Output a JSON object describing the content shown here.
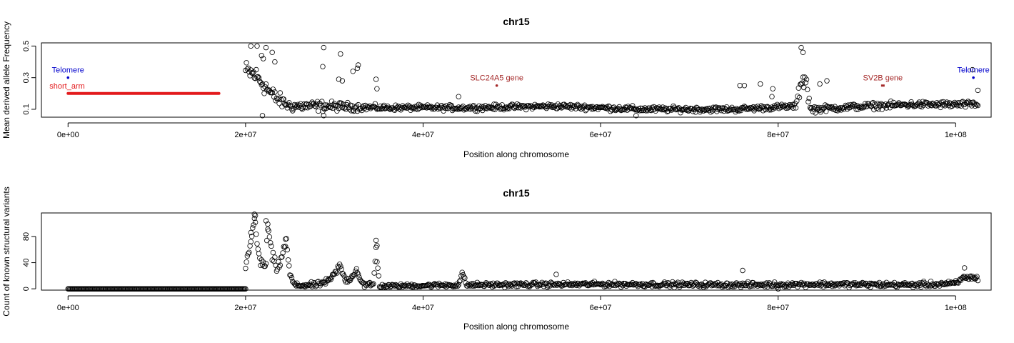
{
  "chart_data": [
    {
      "type": "scatter",
      "title": "chr15",
      "xlabel": "Position along chromosome",
      "ylabel": "Mean derived allele Frequency",
      "xlim": [
        -3000000,
        104000000
      ],
      "ylim": [
        0.05,
        0.52
      ],
      "x_ticks": [
        0,
        20000000,
        40000000,
        60000000,
        80000000,
        100000000
      ],
      "x_tick_labels": [
        "0e+00",
        "2e+07",
        "4e+07",
        "6e+07",
        "8e+07",
        "1e+08"
      ],
      "y_ticks": [
        0.1,
        0.3,
        0.5
      ],
      "y_tick_labels": [
        "0.1",
        "0.3",
        "0.5"
      ],
      "grid": false,
      "colors": {
        "points": "#000000",
        "telomere": "#0000cc",
        "annotation": "#a52a2a",
        "short_arm": "#e31a1c"
      },
      "annotations": [
        {
          "label": "Telomere",
          "x": 0,
          "y": 0.3,
          "color": "#0000cc",
          "marker": "dot"
        },
        {
          "label": "Telomere",
          "x": 102000000,
          "y": 0.3,
          "color": "#0000cc",
          "marker": "dot"
        },
        {
          "label": "SLC24A5 gene",
          "x": 48300000,
          "y": 0.25,
          "color": "#a52a2a",
          "marker": "dot"
        },
        {
          "label": "SV2B gene",
          "x": 91600000,
          "y": 0.25,
          "color": "#a52a2a",
          "marker": "segment",
          "x_end": 92000000
        }
      ],
      "short_arm": {
        "label": "short_arm",
        "x_start": 0,
        "x_end": 17000000,
        "y": 0.2,
        "color": "#e31a1c"
      },
      "series": [
        {
          "x_start": 20000000,
          "x_end": 102500000,
          "step": 100000,
          "baseline": [
            [
              20000000,
              0.34
            ],
            [
              21000000,
              0.32
            ],
            [
              22000000,
              0.26
            ],
            [
              23000000,
              0.19
            ],
            [
              24000000,
              0.15
            ],
            [
              25000000,
              0.12
            ],
            [
              27000000,
              0.12
            ],
            [
              29000000,
              0.12
            ],
            [
              35000000,
              0.11
            ],
            [
              45000000,
              0.11
            ],
            [
              55000000,
              0.12
            ],
            [
              65000000,
              0.1
            ],
            [
              75000000,
              0.1
            ],
            [
              82000000,
              0.12
            ],
            [
              82700000,
              0.3
            ],
            [
              83200000,
              0.28
            ],
            [
              83600000,
              0.1
            ],
            [
              90000000,
              0.12
            ],
            [
              95000000,
              0.13
            ],
            [
              102500000,
              0.13
            ]
          ],
          "spread": [
            [
              20000000,
              0.1
            ],
            [
              23000000,
              0.08
            ],
            [
              25000000,
              0.05
            ],
            [
              28000000,
              0.05
            ],
            [
              35000000,
              0.025
            ],
            [
              82000000,
              0.025
            ],
            [
              82700000,
              0.12
            ],
            [
              84000000,
              0.03
            ],
            [
              102500000,
              0.03
            ]
          ]
        }
      ],
      "outliers": [
        [
          20600000,
          0.5
        ],
        [
          21300000,
          0.5
        ],
        [
          22300000,
          0.49
        ],
        [
          23000000,
          0.46
        ],
        [
          21800000,
          0.44
        ],
        [
          22000000,
          0.42
        ],
        [
          23300000,
          0.4
        ],
        [
          28800000,
          0.49
        ],
        [
          28700000,
          0.37
        ],
        [
          30700000,
          0.45
        ],
        [
          30500000,
          0.29
        ],
        [
          30900000,
          0.28
        ],
        [
          32700000,
          0.38
        ],
        [
          32600000,
          0.36
        ],
        [
          32100000,
          0.34
        ],
        [
          34700000,
          0.29
        ],
        [
          34800000,
          0.23
        ],
        [
          44000000,
          0.18
        ],
        [
          75700000,
          0.25
        ],
        [
          76200000,
          0.25
        ],
        [
          78000000,
          0.26
        ],
        [
          79400000,
          0.23
        ],
        [
          79300000,
          0.18
        ],
        [
          82600000,
          0.49
        ],
        [
          82800000,
          0.46
        ],
        [
          84700000,
          0.26
        ],
        [
          85500000,
          0.28
        ],
        [
          101900000,
          0.35
        ],
        [
          102500000,
          0.22
        ],
        [
          21900000,
          0.06
        ],
        [
          28800000,
          0.06
        ],
        [
          64000000,
          0.06
        ]
      ]
    },
    {
      "type": "scatter",
      "title": "chr15",
      "xlabel": "Position along chromosome",
      "ylabel": "Count of known structural variants",
      "xlim": [
        -3000000,
        104000000
      ],
      "ylim": [
        -2,
        116
      ],
      "x_ticks": [
        0,
        20000000,
        40000000,
        60000000,
        80000000,
        100000000
      ],
      "x_tick_labels": [
        "0e+00",
        "2e+07",
        "4e+07",
        "6e+07",
        "8e+07",
        "1e+08"
      ],
      "y_ticks": [
        0,
        40,
        80
      ],
      "y_tick_labels": [
        "0",
        "40",
        "80"
      ],
      "grid": false,
      "colors": {
        "points": "#000000"
      },
      "series": [
        {
          "zero_run": {
            "x_start": 0,
            "x_end": 20000000,
            "step": 100000,
            "value": 0
          },
          "x_start": 20000000,
          "x_end": 102500000,
          "step": 100000,
          "baseline": [
            [
              20000000,
              30
            ],
            [
              20500000,
              70
            ],
            [
              21000000,
              105
            ],
            [
              21400000,
              60
            ],
            [
              21700000,
              38
            ],
            [
              22300000,
              38
            ],
            [
              22500000,
              95
            ],
            [
              23000000,
              50
            ],
            [
              23600000,
              28
            ],
            [
              24300000,
              60
            ],
            [
              24600000,
              72
            ],
            [
              25000000,
              20
            ],
            [
              25600000,
              5
            ],
            [
              28000000,
              6
            ],
            [
              29400000,
              12
            ],
            [
              30000000,
              22
            ],
            [
              30600000,
              35
            ],
            [
              31300000,
              12
            ],
            [
              32000000,
              18
            ],
            [
              32500000,
              30
            ],
            [
              33000000,
              12
            ],
            [
              33500000,
              5
            ],
            [
              34400000,
              6
            ],
            [
              34700000,
              60
            ],
            [
              35100000,
              4
            ],
            [
              44000000,
              6
            ],
            [
              44400000,
              24
            ],
            [
              44900000,
              6
            ],
            [
              60000000,
              7
            ],
            [
              77000000,
              6
            ],
            [
              84000000,
              7
            ],
            [
              95000000,
              6
            ],
            [
              100000000,
              8
            ],
            [
              101000000,
              18
            ],
            [
              102500000,
              16
            ]
          ],
          "spread": [
            [
              20000000,
              14
            ],
            [
              21500000,
              10
            ],
            [
              22500000,
              14
            ],
            [
              24500000,
              10
            ],
            [
              25700000,
              5
            ],
            [
              28000000,
              6
            ],
            [
              30500000,
              8
            ],
            [
              33000000,
              5
            ],
            [
              34700000,
              12
            ],
            [
              35200000,
              4
            ],
            [
              45000000,
              5
            ],
            [
              102500000,
              6
            ]
          ]
        }
      ],
      "outliers": [
        [
          21000000,
          114
        ],
        [
          21100000,
          112
        ],
        [
          22300000,
          104
        ],
        [
          22500000,
          99
        ],
        [
          34700000,
          74
        ],
        [
          34800000,
          66
        ],
        [
          24500000,
          76
        ],
        [
          20600000,
          86
        ],
        [
          80000000,
          0
        ],
        [
          55000000,
          22
        ],
        [
          76000000,
          28
        ],
        [
          101000000,
          32
        ]
      ]
    }
  ]
}
